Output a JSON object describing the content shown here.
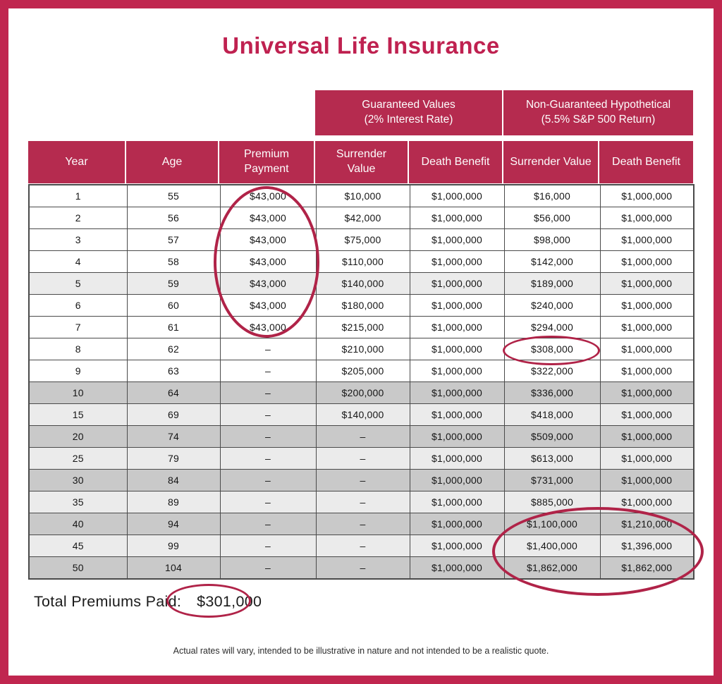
{
  "title": "Universal Life Insurance",
  "colors": {
    "accent_crimson": "#b52b4f",
    "frame_border": "#c0264f",
    "annotation_stroke": "#b02348",
    "row_light_gray": "#ebebeb",
    "row_dark_gray": "#c9c9c9",
    "grid_line": "#4a4a4a"
  },
  "chart_data": {
    "type": "table",
    "title": "Universal Life Insurance",
    "group_headers": [
      {
        "line1": "Guaranteed Values",
        "line2": "(2% Interest Rate)",
        "spans": [
          "Surrender Value",
          "Death Benefit"
        ]
      },
      {
        "line1": "Non-Guaranteed Hypothetical",
        "line2": "(5.5% S&P 500 Return)",
        "spans": [
          "Surrender Value",
          "Death Benefit"
        ]
      }
    ],
    "columns": [
      "Year",
      "Age",
      "Premium Payment",
      "Surrender Value",
      "Death Benefit",
      "Surrender Value",
      "Death Benefit"
    ],
    "rows": [
      {
        "shade": "white",
        "cells": [
          "1",
          "55",
          "$43,000",
          "$10,000",
          "$1,000,000",
          "$16,000",
          "$1,000,000"
        ]
      },
      {
        "shade": "white",
        "cells": [
          "2",
          "56",
          "$43,000",
          "$42,000",
          "$1,000,000",
          "$56,000",
          "$1,000,000"
        ]
      },
      {
        "shade": "white",
        "cells": [
          "3",
          "57",
          "$43,000",
          "$75,000",
          "$1,000,000",
          "$98,000",
          "$1,000,000"
        ]
      },
      {
        "shade": "white",
        "cells": [
          "4",
          "58",
          "$43,000",
          "$110,000",
          "$1,000,000",
          "$142,000",
          "$1,000,000"
        ]
      },
      {
        "shade": "light",
        "cells": [
          "5",
          "59",
          "$43,000",
          "$140,000",
          "$1,000,000",
          "$189,000",
          "$1,000,000"
        ]
      },
      {
        "shade": "white",
        "cells": [
          "6",
          "60",
          "$43,000",
          "$180,000",
          "$1,000,000",
          "$240,000",
          "$1,000,000"
        ]
      },
      {
        "shade": "white",
        "cells": [
          "7",
          "61",
          "$43,000",
          "$215,000",
          "$1,000,000",
          "$294,000",
          "$1,000,000"
        ]
      },
      {
        "shade": "white",
        "cells": [
          "8",
          "62",
          "–",
          "$210,000",
          "$1,000,000",
          "$308,000",
          "$1,000,000"
        ]
      },
      {
        "shade": "white",
        "cells": [
          "9",
          "63",
          "–",
          "$205,000",
          "$1,000,000",
          "$322,000",
          "$1,000,000"
        ]
      },
      {
        "shade": "dark",
        "cells": [
          "10",
          "64",
          "–",
          "$200,000",
          "$1,000,000",
          "$336,000",
          "$1,000,000"
        ]
      },
      {
        "shade": "light",
        "cells": [
          "15",
          "69",
          "–",
          "$140,000",
          "$1,000,000",
          "$418,000",
          "$1,000,000"
        ]
      },
      {
        "shade": "dark",
        "cells": [
          "20",
          "74",
          "–",
          "–",
          "$1,000,000",
          "$509,000",
          "$1,000,000"
        ]
      },
      {
        "shade": "light",
        "cells": [
          "25",
          "79",
          "–",
          "–",
          "$1,000,000",
          "$613,000",
          "$1,000,000"
        ]
      },
      {
        "shade": "dark",
        "cells": [
          "30",
          "84",
          "–",
          "–",
          "$1,000,000",
          "$731,000",
          "$1,000,000"
        ]
      },
      {
        "shade": "light",
        "cells": [
          "35",
          "89",
          "–",
          "–",
          "$1,000,000",
          "$885,000",
          "$1,000,000"
        ]
      },
      {
        "shade": "dark",
        "cells": [
          "40",
          "94",
          "–",
          "–",
          "$1,000,000",
          "$1,100,000",
          "$1,210,000"
        ]
      },
      {
        "shade": "light",
        "cells": [
          "45",
          "99",
          "–",
          "–",
          "$1,000,000",
          "$1,400,000",
          "$1,396,000"
        ]
      },
      {
        "shade": "dark",
        "cells": [
          "50",
          "104",
          "–",
          "–",
          "$1,000,000",
          "$1,862,000",
          "$1,862,000"
        ]
      }
    ]
  },
  "totals": {
    "label": "Total Premiums Paid:",
    "value": "$301,000"
  },
  "footnote": "Actual rates will vary, intended to be illustrative in nature and not intended to be a realistic quote.",
  "annotations": [
    {
      "name": "premium-payments-ellipse",
      "circled_text": "$43,000 premium payments, years 1–7"
    },
    {
      "name": "surrender-value-308k-ellipse",
      "circled_text": "$308,000"
    },
    {
      "name": "late-year-values-ellipse",
      "circled_text": "Non-guaranteed values, years 40–50"
    },
    {
      "name": "total-premiums-ellipse",
      "circled_text": "$301,000"
    }
  ]
}
